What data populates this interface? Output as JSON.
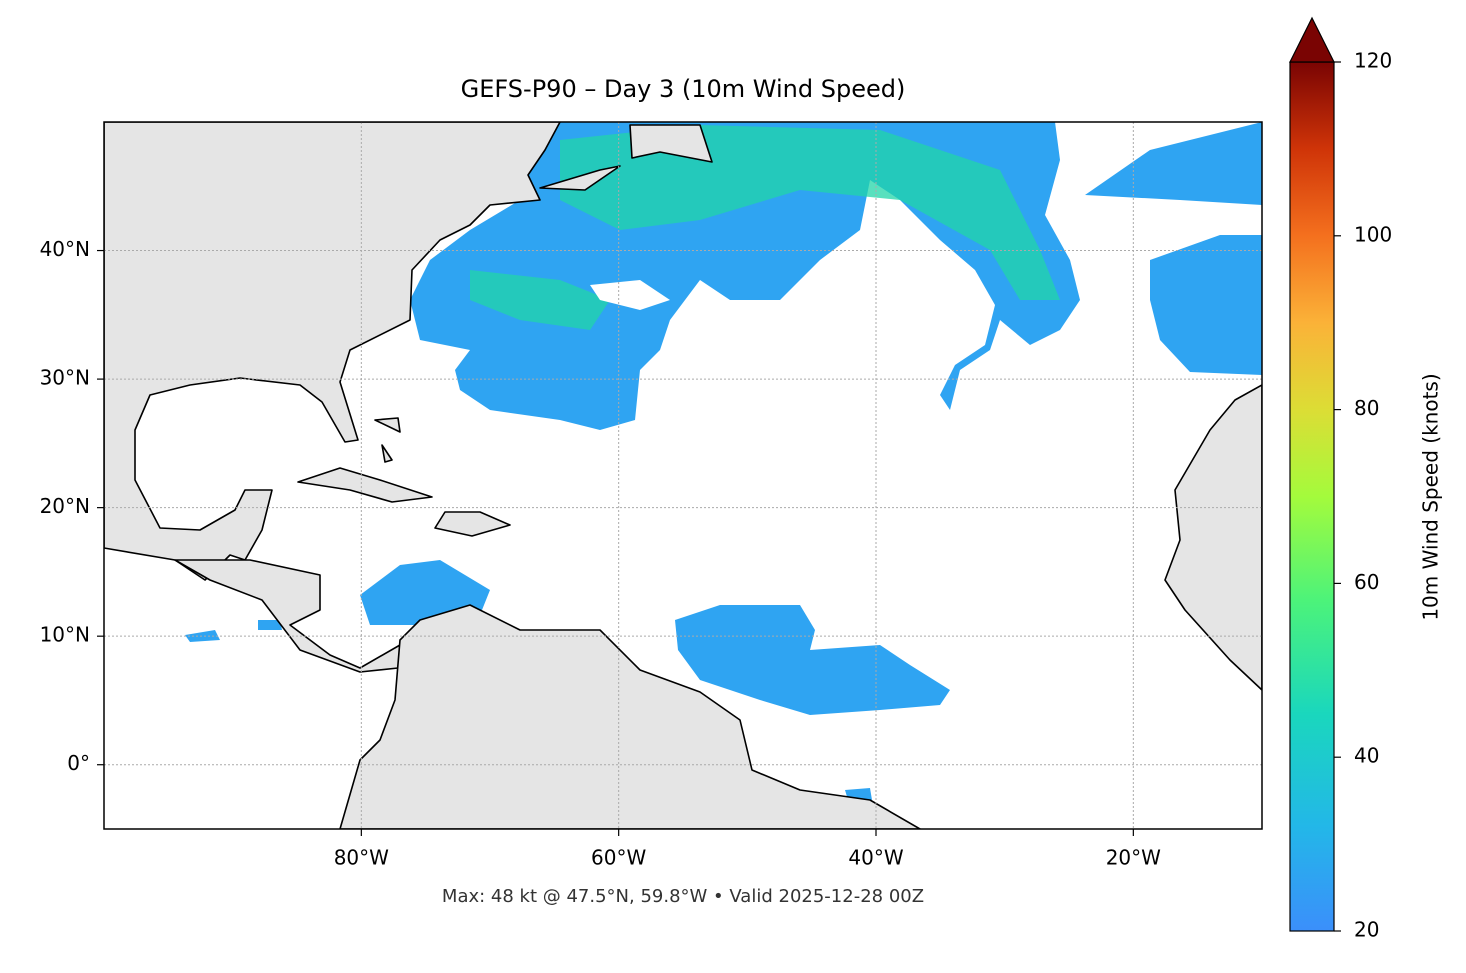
{
  "map": {
    "title": "GEFS-P90 – Day 3 (10m Wind Speed)",
    "lonlim": [
      -100,
      -10
    ],
    "latlim": [
      -5,
      50
    ],
    "lon_ticks": [
      {
        "value": -80,
        "label": "80°W"
      },
      {
        "value": -60,
        "label": "60°W"
      },
      {
        "value": -40,
        "label": "40°W"
      },
      {
        "value": -20,
        "label": "20°W"
      }
    ],
    "lat_ticks": [
      {
        "value": 0,
        "label": "0°"
      },
      {
        "value": 10,
        "label": "10°N"
      },
      {
        "value": 20,
        "label": "20°N"
      },
      {
        "value": 30,
        "label": "30°N"
      },
      {
        "value": 40,
        "label": "40°N"
      }
    ],
    "grid": true
  },
  "colorbar": {
    "label": "10m Wind Speed (knots)",
    "lim": [
      20,
      120
    ],
    "ticks": [
      20,
      40,
      60,
      80,
      100,
      120
    ],
    "extend": "max"
  },
  "footnote": "Max: 48 kt @ 47.5°N, 59.8°W • Valid 2025-12-28 00Z"
}
